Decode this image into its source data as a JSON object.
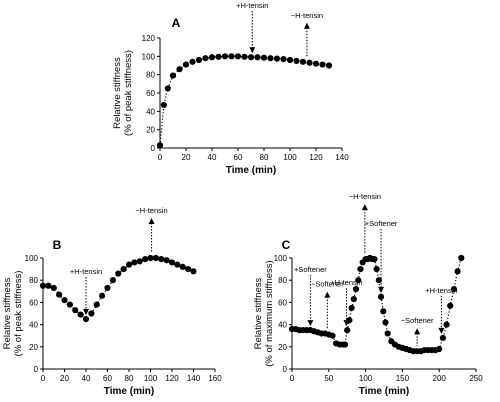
{
  "chart_data": [
    {
      "panel": "A",
      "type": "scatter",
      "xlabel": "Time (min)",
      "ylabel": [
        "Relative stiffness",
        "(% of peak stiffness)"
      ],
      "xlim": [
        0,
        140
      ],
      "ylim": [
        0,
        120
      ],
      "xticks": [
        0,
        20,
        40,
        60,
        80,
        100,
        120,
        140
      ],
      "yticks": [
        0,
        20,
        40,
        60,
        80,
        100,
        120
      ],
      "grid": false,
      "x": [
        0,
        3,
        6,
        10,
        15,
        20,
        25,
        30,
        35,
        40,
        45,
        50,
        55,
        60,
        65,
        70,
        75,
        80,
        85,
        90,
        95,
        100,
        105,
        110,
        115,
        120,
        125,
        130
      ],
      "y": [
        3,
        47,
        65,
        79,
        86,
        91,
        94,
        96,
        98,
        99,
        99.5,
        100,
        100,
        100,
        99.5,
        99,
        99,
        98.5,
        98,
        97.5,
        97,
        96,
        95,
        94,
        93,
        92,
        91,
        90
      ],
      "annotations": [
        {
          "label": "+H-tensin",
          "x": 71,
          "direction": "down"
        },
        {
          "label": "−H-tensin",
          "x": 113,
          "direction": "up"
        }
      ]
    },
    {
      "panel": "B",
      "type": "scatter",
      "xlabel": "Time (min)",
      "ylabel": [
        "Relative stiffness",
        "(% of peak stiffness)"
      ],
      "xlim": [
        0,
        160
      ],
      "ylim": [
        0,
        100
      ],
      "xticks": [
        0,
        20,
        40,
        60,
        80,
        100,
        120,
        140,
        160
      ],
      "yticks": [
        0,
        20,
        40,
        60,
        80,
        100
      ],
      "grid": false,
      "x": [
        0,
        5,
        10,
        15,
        20,
        25,
        30,
        35,
        40,
        45,
        50,
        55,
        60,
        65,
        70,
        75,
        80,
        85,
        90,
        95,
        100,
        105,
        110,
        115,
        120,
        125,
        130,
        135,
        140
      ],
      "y": [
        75,
        75,
        73,
        67,
        62,
        58,
        53,
        49,
        45,
        50,
        58,
        66,
        73,
        80,
        86,
        90,
        94,
        96,
        97,
        99,
        100,
        100,
        99,
        98,
        96,
        94,
        92,
        90,
        88
      ],
      "annotations": [
        {
          "label": "+H-tensin",
          "x": 40,
          "direction": "down"
        },
        {
          "label": "−H-tensin",
          "x": 101,
          "direction": "up"
        }
      ]
    },
    {
      "panel": "C",
      "type": "scatter",
      "xlabel": "Time (min)",
      "ylabel": [
        "Relative stiffness",
        "(% of maximum stiffness)"
      ],
      "xlim": [
        0,
        250
      ],
      "ylim": [
        0,
        100
      ],
      "xticks": [
        0,
        50,
        100,
        150,
        200,
        250
      ],
      "yticks": [
        0,
        20,
        40,
        60,
        80,
        100
      ],
      "grid": false,
      "x": [
        0,
        5,
        10,
        15,
        20,
        25,
        30,
        35,
        40,
        45,
        50,
        55,
        60,
        65,
        70,
        72,
        75,
        78,
        81,
        84,
        87,
        90,
        93,
        96,
        100,
        103,
        106,
        109,
        112,
        115,
        118,
        121,
        124,
        127,
        130,
        135,
        140,
        145,
        150,
        155,
        160,
        165,
        170,
        175,
        180,
        185,
        190,
        195,
        200,
        205,
        210,
        215,
        220,
        225,
        230
      ],
      "y": [
        36,
        36,
        35,
        35,
        35,
        35,
        34,
        33,
        32,
        32,
        31,
        30,
        23,
        22,
        22,
        22,
        35,
        44,
        55,
        63,
        72,
        80,
        90,
        96,
        99,
        99,
        100,
        99,
        99,
        90,
        80,
        65,
        52,
        42,
        32,
        25,
        22,
        20,
        19,
        18,
        17,
        16,
        16,
        16,
        17,
        17,
        17,
        17,
        18,
        28,
        40,
        57,
        72,
        88,
        100
      ],
      "annotations": [
        {
          "label": "+Softener",
          "x": 25,
          "direction": "down"
        },
        {
          "label": "−Softener",
          "x": 48,
          "direction": "up"
        },
        {
          "label": "+H-tensin",
          "x": 74,
          "direction": "down"
        },
        {
          "label": "−H-tensin",
          "x": 99,
          "direction": "up"
        },
        {
          "label": "+Softener",
          "x": 121,
          "direction": "down"
        },
        {
          "label": "−Softener",
          "x": 170,
          "direction": "up"
        },
        {
          "label": "+H-tensin",
          "x": 203,
          "direction": "down"
        }
      ]
    }
  ],
  "panel_labels": [
    "A",
    "B",
    "C"
  ]
}
